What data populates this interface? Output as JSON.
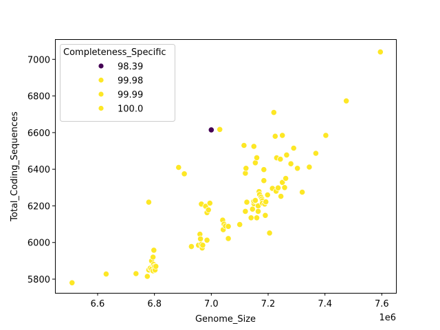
{
  "chart_data": {
    "type": "scatter",
    "xlabel": "Genome_Size",
    "ylabel": "Total_Coding_Sequences",
    "x_offset_label": "1e6",
    "xlim": [
      6.45,
      7.65
    ],
    "ylim": [
      5725,
      7110
    ],
    "x_ticks": [
      6.6,
      6.8,
      7.0,
      7.2,
      7.4,
      7.6
    ],
    "x_tick_labels": [
      "6.6",
      "6.8",
      "7.0",
      "7.2",
      "7.4",
      "7.6"
    ],
    "y_ticks": [
      5800,
      6000,
      6200,
      6400,
      6600,
      6800,
      7000
    ],
    "y_tick_labels": [
      "5800",
      "6000",
      "6200",
      "6400",
      "6600",
      "6800",
      "7000"
    ],
    "grid": false,
    "legend": {
      "title": "Completeness_Specific",
      "placement": "upper-left",
      "entries": [
        {
          "label": "98.39",
          "color": "#440154"
        },
        {
          "label": "99.98",
          "color": "#fde725"
        },
        {
          "label": "99.99",
          "color": "#fde725"
        },
        {
          "label": "100.0",
          "color": "#fde725"
        }
      ]
    },
    "series": [
      {
        "group": "98.39",
        "color": "#440154",
        "points": [
          [
            7.0,
            6615
          ]
        ]
      },
      {
        "group": "100.0",
        "color": "#fde725",
        "points": [
          [
            6.51,
            5780
          ],
          [
            6.63,
            5828
          ],
          [
            6.735,
            5830
          ],
          [
            6.775,
            5815
          ],
          [
            6.78,
            6220
          ],
          [
            6.78,
            5850
          ],
          [
            6.785,
            5860
          ],
          [
            6.79,
            5900
          ],
          [
            6.79,
            5855
          ],
          [
            6.795,
            5845
          ],
          [
            6.795,
            5920
          ],
          [
            6.797,
            5880
          ],
          [
            6.8,
            5870
          ],
          [
            6.798,
            5958
          ],
          [
            6.802,
            5850
          ],
          [
            6.805,
            5870
          ],
          [
            6.885,
            6410
          ],
          [
            6.905,
            6375
          ],
          [
            6.93,
            5978
          ],
          [
            6.955,
            5985
          ],
          [
            6.96,
            6045
          ],
          [
            6.962,
            6020
          ],
          [
            6.965,
            5990
          ],
          [
            6.965,
            6210
          ],
          [
            6.968,
            5970
          ],
          [
            6.97,
            5985
          ],
          [
            6.98,
            6198
          ],
          [
            6.985,
            6013
          ],
          [
            6.985,
            6163
          ],
          [
            6.99,
            6178
          ],
          [
            6.995,
            6215
          ],
          [
            7.03,
            6617
          ],
          [
            7.04,
            6122
          ],
          [
            7.042,
            6070
          ],
          [
            7.045,
            6100
          ],
          [
            7.05,
            6090
          ],
          [
            7.06,
            6022
          ],
          [
            7.06,
            6088
          ],
          [
            7.1,
            6098
          ],
          [
            7.115,
            6530
          ],
          [
            7.12,
            6170
          ],
          [
            7.12,
            6378
          ],
          [
            7.122,
            6405
          ],
          [
            7.125,
            6220
          ],
          [
            7.14,
            6135
          ],
          [
            7.145,
            6182
          ],
          [
            7.15,
            6525
          ],
          [
            7.15,
            6212
          ],
          [
            7.15,
            6225
          ],
          [
            7.155,
            6230
          ],
          [
            7.155,
            6435
          ],
          [
            7.16,
            6135
          ],
          [
            7.16,
            6463
          ],
          [
            7.165,
            6200
          ],
          [
            7.165,
            6170
          ],
          [
            7.168,
            6278
          ],
          [
            7.17,
            6262
          ],
          [
            7.175,
            6248
          ],
          [
            7.178,
            6238
          ],
          [
            7.18,
            6228
          ],
          [
            7.18,
            6215
          ],
          [
            7.185,
            6338
          ],
          [
            7.185,
            6398
          ],
          [
            7.188,
            6210
          ],
          [
            7.19,
            6148
          ],
          [
            7.192,
            6222
          ],
          [
            7.198,
            6260
          ],
          [
            7.205,
            6052
          ],
          [
            7.215,
            6295
          ],
          [
            7.22,
            6710
          ],
          [
            7.225,
            6580
          ],
          [
            7.228,
            6280
          ],
          [
            7.23,
            6462
          ],
          [
            7.235,
            6298
          ],
          [
            7.243,
            6455
          ],
          [
            7.245,
            6252
          ],
          [
            7.25,
            6585
          ],
          [
            7.25,
            6328
          ],
          [
            7.258,
            6300
          ],
          [
            7.262,
            6350
          ],
          [
            7.265,
            6478
          ],
          [
            7.28,
            6430
          ],
          [
            7.29,
            6515
          ],
          [
            7.303,
            6405
          ],
          [
            7.32,
            6275
          ],
          [
            7.345,
            6412
          ],
          [
            7.368,
            6487
          ],
          [
            7.403,
            6585
          ],
          [
            7.475,
            6773
          ],
          [
            7.595,
            7040
          ]
        ]
      }
    ]
  }
}
